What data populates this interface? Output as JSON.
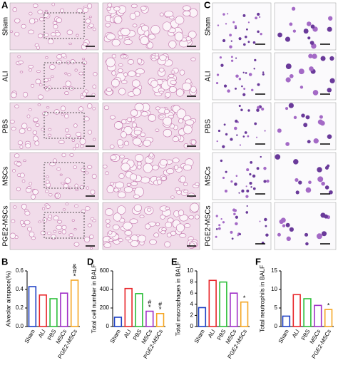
{
  "figure": {
    "panel_labels": [
      "A",
      "C"
    ],
    "rows": [
      "Sham",
      "ALI",
      "PBS",
      "MSCs",
      "PGE2-MSCs"
    ]
  },
  "chart_data": [
    {
      "type": "bar",
      "panel": "B",
      "y_label": "Alveolar airspace(%)",
      "categories": [
        "Sham",
        "ALI",
        "PBS",
        "MSCs",
        "PGE2-MSCs"
      ],
      "series": [
        {
          "values": [
            0.43,
            0.34,
            0.3,
            0.36,
            0.5
          ]
        }
      ],
      "colors": [
        "#1c3fc4",
        "#e8262a",
        "#2dbf3a",
        "#a030c8",
        "#f5a623"
      ],
      "ylim": [
        0,
        0.6
      ],
      "yticks": [
        {
          "value": 0,
          "label": "0.0"
        },
        0.2,
        0.4,
        0.6
      ],
      "annotations": [
        null,
        null,
        null,
        null,
        [
          "&",
          "#",
          "*"
        ]
      ]
    },
    {
      "type": "bar",
      "panel": "D",
      "y_label": "Total cell number in BALF",
      "categories": [
        "Sham",
        "ALI",
        "PBS",
        "MSCs",
        "PGE2-MSCs"
      ],
      "series": [
        {
          "values": [
            100,
            410,
            355,
            165,
            140
          ]
        }
      ],
      "colors": [
        "#1c3fc4",
        "#e8262a",
        "#2dbf3a",
        "#a030c8",
        "#f5a623"
      ],
      "ylim": [
        0,
        600
      ],
      "yticks": [
        0,
        200,
        400,
        600
      ],
      "annotations": [
        null,
        null,
        null,
        [
          "#",
          "*"
        ],
        [
          "#",
          "*"
        ]
      ]
    },
    {
      "type": "bar",
      "panel": "E",
      "y_label": "Total macrophages in BALF",
      "categories": [
        "Sham",
        "ALI",
        "PBS",
        "MSCs",
        "PGE2-MSCs"
      ],
      "series": [
        {
          "values": [
            3.4,
            8.3,
            8.0,
            6.0,
            4.4
          ]
        }
      ],
      "colors": [
        "#1c3fc4",
        "#e8262a",
        "#2dbf3a",
        "#a030c8",
        "#f5a623"
      ],
      "ylim": [
        0,
        10
      ],
      "yticks": [
        0,
        2,
        4,
        6,
        8,
        10
      ],
      "annotations": [
        null,
        null,
        null,
        null,
        [
          "*"
        ]
      ]
    },
    {
      "type": "bar",
      "panel": "F",
      "y_label": "Total neutrophils in BALF",
      "categories": [
        "Sham",
        "ALI",
        "PBS",
        "MSCs",
        "PGE2-MSCs"
      ],
      "series": [
        {
          "values": [
            2.8,
            8.6,
            7.5,
            5.7,
            4.6
          ]
        }
      ],
      "colors": [
        "#1c3fc4",
        "#e8262a",
        "#2dbf3a",
        "#a030c8",
        "#f5a623"
      ],
      "ylim": [
        0,
        15
      ],
      "yticks": [
        0,
        5,
        10,
        15
      ],
      "annotations": [
        null,
        null,
        null,
        null,
        [
          "*"
        ]
      ]
    }
  ]
}
